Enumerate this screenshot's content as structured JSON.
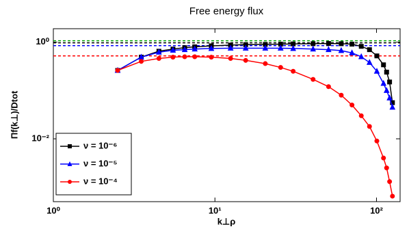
{
  "chart_data": {
    "type": "line",
    "title": "Free energy flux",
    "x_label": "k⊥ρ",
    "y_label": "Πf(k⊥)/Dtot",
    "x_scale": "log",
    "y_scale": "log",
    "xlim": [
      1,
      140
    ],
    "ylim": [
      0.0005,
      1.9
    ],
    "xticks": [
      {
        "value": 1,
        "label": "10⁰"
      },
      {
        "value": 10,
        "label": "10¹"
      },
      {
        "value": 100,
        "label": "10²"
      }
    ],
    "yticks": [
      {
        "value": 0.01,
        "label": "10⁻²"
      },
      {
        "value": 1,
        "label": "10⁰"
      }
    ],
    "grid": false,
    "legend_loc": "lower left",
    "x": [
      2.5,
      3.5,
      4.5,
      5.5,
      6.5,
      7.5,
      9.5,
      12.5,
      15.5,
      20.5,
      25.5,
      30.5,
      40.5,
      50.5,
      60.5,
      70.5,
      80.5,
      90.5,
      100.5,
      110.5,
      115.5,
      120.5,
      125.5
    ],
    "series": [
      {
        "name": "ν = 10⁻⁶",
        "color": "#000000",
        "marker": "square",
        "values": [
          0.26,
          0.49,
          0.65,
          0.72,
          0.77,
          0.8,
          0.84,
          0.87,
          0.89,
          0.9,
          0.91,
          0.92,
          0.93,
          0.94,
          0.93,
          0.91,
          0.82,
          0.7,
          0.52,
          0.34,
          0.24,
          0.15,
          0.056
        ]
      },
      {
        "name": "ν = 10⁻⁵",
        "color": "#0000ff",
        "marker": "triangle",
        "values": [
          0.26,
          0.49,
          0.62,
          0.68,
          0.7,
          0.72,
          0.74,
          0.75,
          0.75,
          0.75,
          0.75,
          0.74,
          0.72,
          0.7,
          0.67,
          0.6,
          0.5,
          0.38,
          0.25,
          0.14,
          0.1,
          0.07,
          0.045
        ]
      },
      {
        "name": "ν = 10⁻⁴",
        "color": "#ff0000",
        "marker": "circle",
        "values": [
          0.26,
          0.4,
          0.46,
          0.49,
          0.5,
          0.5,
          0.49,
          0.46,
          0.42,
          0.36,
          0.3,
          0.25,
          0.17,
          0.12,
          0.08,
          0.05,
          0.03,
          0.018,
          0.009,
          0.004,
          0.0025,
          0.0013,
          0.00065
        ]
      }
    ],
    "reference_lines": [
      {
        "value": 1.07,
        "color": "#00a000"
      },
      {
        "value": 0.97,
        "color": "#000000"
      },
      {
        "value": 0.85,
        "color": "#0000ff"
      },
      {
        "value": 0.52,
        "color": "#ff0000"
      }
    ]
  }
}
